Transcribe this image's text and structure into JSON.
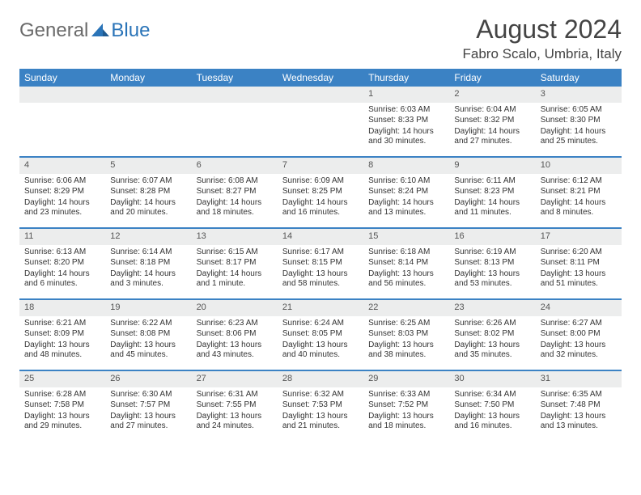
{
  "header": {
    "logo_general": "General",
    "logo_blue": "Blue",
    "month_title": "August 2024",
    "location": "Fabro Scalo, Umbria, Italy"
  },
  "weekdays": [
    "Sunday",
    "Monday",
    "Tuesday",
    "Wednesday",
    "Thursday",
    "Friday",
    "Saturday"
  ],
  "colors": {
    "header_bg": "#3b82c4",
    "daynum_bg": "#eceded",
    "rule": "#3b82c4"
  },
  "weeks": [
    [
      {
        "n": "",
        "sunrise": "",
        "sunset": "",
        "daylight": ""
      },
      {
        "n": "",
        "sunrise": "",
        "sunset": "",
        "daylight": ""
      },
      {
        "n": "",
        "sunrise": "",
        "sunset": "",
        "daylight": ""
      },
      {
        "n": "",
        "sunrise": "",
        "sunset": "",
        "daylight": ""
      },
      {
        "n": "1",
        "sunrise": "Sunrise: 6:03 AM",
        "sunset": "Sunset: 8:33 PM",
        "daylight": "Daylight: 14 hours and 30 minutes."
      },
      {
        "n": "2",
        "sunrise": "Sunrise: 6:04 AM",
        "sunset": "Sunset: 8:32 PM",
        "daylight": "Daylight: 14 hours and 27 minutes."
      },
      {
        "n": "3",
        "sunrise": "Sunrise: 6:05 AM",
        "sunset": "Sunset: 8:30 PM",
        "daylight": "Daylight: 14 hours and 25 minutes."
      }
    ],
    [
      {
        "n": "4",
        "sunrise": "Sunrise: 6:06 AM",
        "sunset": "Sunset: 8:29 PM",
        "daylight": "Daylight: 14 hours and 23 minutes."
      },
      {
        "n": "5",
        "sunrise": "Sunrise: 6:07 AM",
        "sunset": "Sunset: 8:28 PM",
        "daylight": "Daylight: 14 hours and 20 minutes."
      },
      {
        "n": "6",
        "sunrise": "Sunrise: 6:08 AM",
        "sunset": "Sunset: 8:27 PM",
        "daylight": "Daylight: 14 hours and 18 minutes."
      },
      {
        "n": "7",
        "sunrise": "Sunrise: 6:09 AM",
        "sunset": "Sunset: 8:25 PM",
        "daylight": "Daylight: 14 hours and 16 minutes."
      },
      {
        "n": "8",
        "sunrise": "Sunrise: 6:10 AM",
        "sunset": "Sunset: 8:24 PM",
        "daylight": "Daylight: 14 hours and 13 minutes."
      },
      {
        "n": "9",
        "sunrise": "Sunrise: 6:11 AM",
        "sunset": "Sunset: 8:23 PM",
        "daylight": "Daylight: 14 hours and 11 minutes."
      },
      {
        "n": "10",
        "sunrise": "Sunrise: 6:12 AM",
        "sunset": "Sunset: 8:21 PM",
        "daylight": "Daylight: 14 hours and 8 minutes."
      }
    ],
    [
      {
        "n": "11",
        "sunrise": "Sunrise: 6:13 AM",
        "sunset": "Sunset: 8:20 PM",
        "daylight": "Daylight: 14 hours and 6 minutes."
      },
      {
        "n": "12",
        "sunrise": "Sunrise: 6:14 AM",
        "sunset": "Sunset: 8:18 PM",
        "daylight": "Daylight: 14 hours and 3 minutes."
      },
      {
        "n": "13",
        "sunrise": "Sunrise: 6:15 AM",
        "sunset": "Sunset: 8:17 PM",
        "daylight": "Daylight: 14 hours and 1 minute."
      },
      {
        "n": "14",
        "sunrise": "Sunrise: 6:17 AM",
        "sunset": "Sunset: 8:15 PM",
        "daylight": "Daylight: 13 hours and 58 minutes."
      },
      {
        "n": "15",
        "sunrise": "Sunrise: 6:18 AM",
        "sunset": "Sunset: 8:14 PM",
        "daylight": "Daylight: 13 hours and 56 minutes."
      },
      {
        "n": "16",
        "sunrise": "Sunrise: 6:19 AM",
        "sunset": "Sunset: 8:13 PM",
        "daylight": "Daylight: 13 hours and 53 minutes."
      },
      {
        "n": "17",
        "sunrise": "Sunrise: 6:20 AM",
        "sunset": "Sunset: 8:11 PM",
        "daylight": "Daylight: 13 hours and 51 minutes."
      }
    ],
    [
      {
        "n": "18",
        "sunrise": "Sunrise: 6:21 AM",
        "sunset": "Sunset: 8:09 PM",
        "daylight": "Daylight: 13 hours and 48 minutes."
      },
      {
        "n": "19",
        "sunrise": "Sunrise: 6:22 AM",
        "sunset": "Sunset: 8:08 PM",
        "daylight": "Daylight: 13 hours and 45 minutes."
      },
      {
        "n": "20",
        "sunrise": "Sunrise: 6:23 AM",
        "sunset": "Sunset: 8:06 PM",
        "daylight": "Daylight: 13 hours and 43 minutes."
      },
      {
        "n": "21",
        "sunrise": "Sunrise: 6:24 AM",
        "sunset": "Sunset: 8:05 PM",
        "daylight": "Daylight: 13 hours and 40 minutes."
      },
      {
        "n": "22",
        "sunrise": "Sunrise: 6:25 AM",
        "sunset": "Sunset: 8:03 PM",
        "daylight": "Daylight: 13 hours and 38 minutes."
      },
      {
        "n": "23",
        "sunrise": "Sunrise: 6:26 AM",
        "sunset": "Sunset: 8:02 PM",
        "daylight": "Daylight: 13 hours and 35 minutes."
      },
      {
        "n": "24",
        "sunrise": "Sunrise: 6:27 AM",
        "sunset": "Sunset: 8:00 PM",
        "daylight": "Daylight: 13 hours and 32 minutes."
      }
    ],
    [
      {
        "n": "25",
        "sunrise": "Sunrise: 6:28 AM",
        "sunset": "Sunset: 7:58 PM",
        "daylight": "Daylight: 13 hours and 29 minutes."
      },
      {
        "n": "26",
        "sunrise": "Sunrise: 6:30 AM",
        "sunset": "Sunset: 7:57 PM",
        "daylight": "Daylight: 13 hours and 27 minutes."
      },
      {
        "n": "27",
        "sunrise": "Sunrise: 6:31 AM",
        "sunset": "Sunset: 7:55 PM",
        "daylight": "Daylight: 13 hours and 24 minutes."
      },
      {
        "n": "28",
        "sunrise": "Sunrise: 6:32 AM",
        "sunset": "Sunset: 7:53 PM",
        "daylight": "Daylight: 13 hours and 21 minutes."
      },
      {
        "n": "29",
        "sunrise": "Sunrise: 6:33 AM",
        "sunset": "Sunset: 7:52 PM",
        "daylight": "Daylight: 13 hours and 18 minutes."
      },
      {
        "n": "30",
        "sunrise": "Sunrise: 6:34 AM",
        "sunset": "Sunset: 7:50 PM",
        "daylight": "Daylight: 13 hours and 16 minutes."
      },
      {
        "n": "31",
        "sunrise": "Sunrise: 6:35 AM",
        "sunset": "Sunset: 7:48 PM",
        "daylight": "Daylight: 13 hours and 13 minutes."
      }
    ]
  ]
}
